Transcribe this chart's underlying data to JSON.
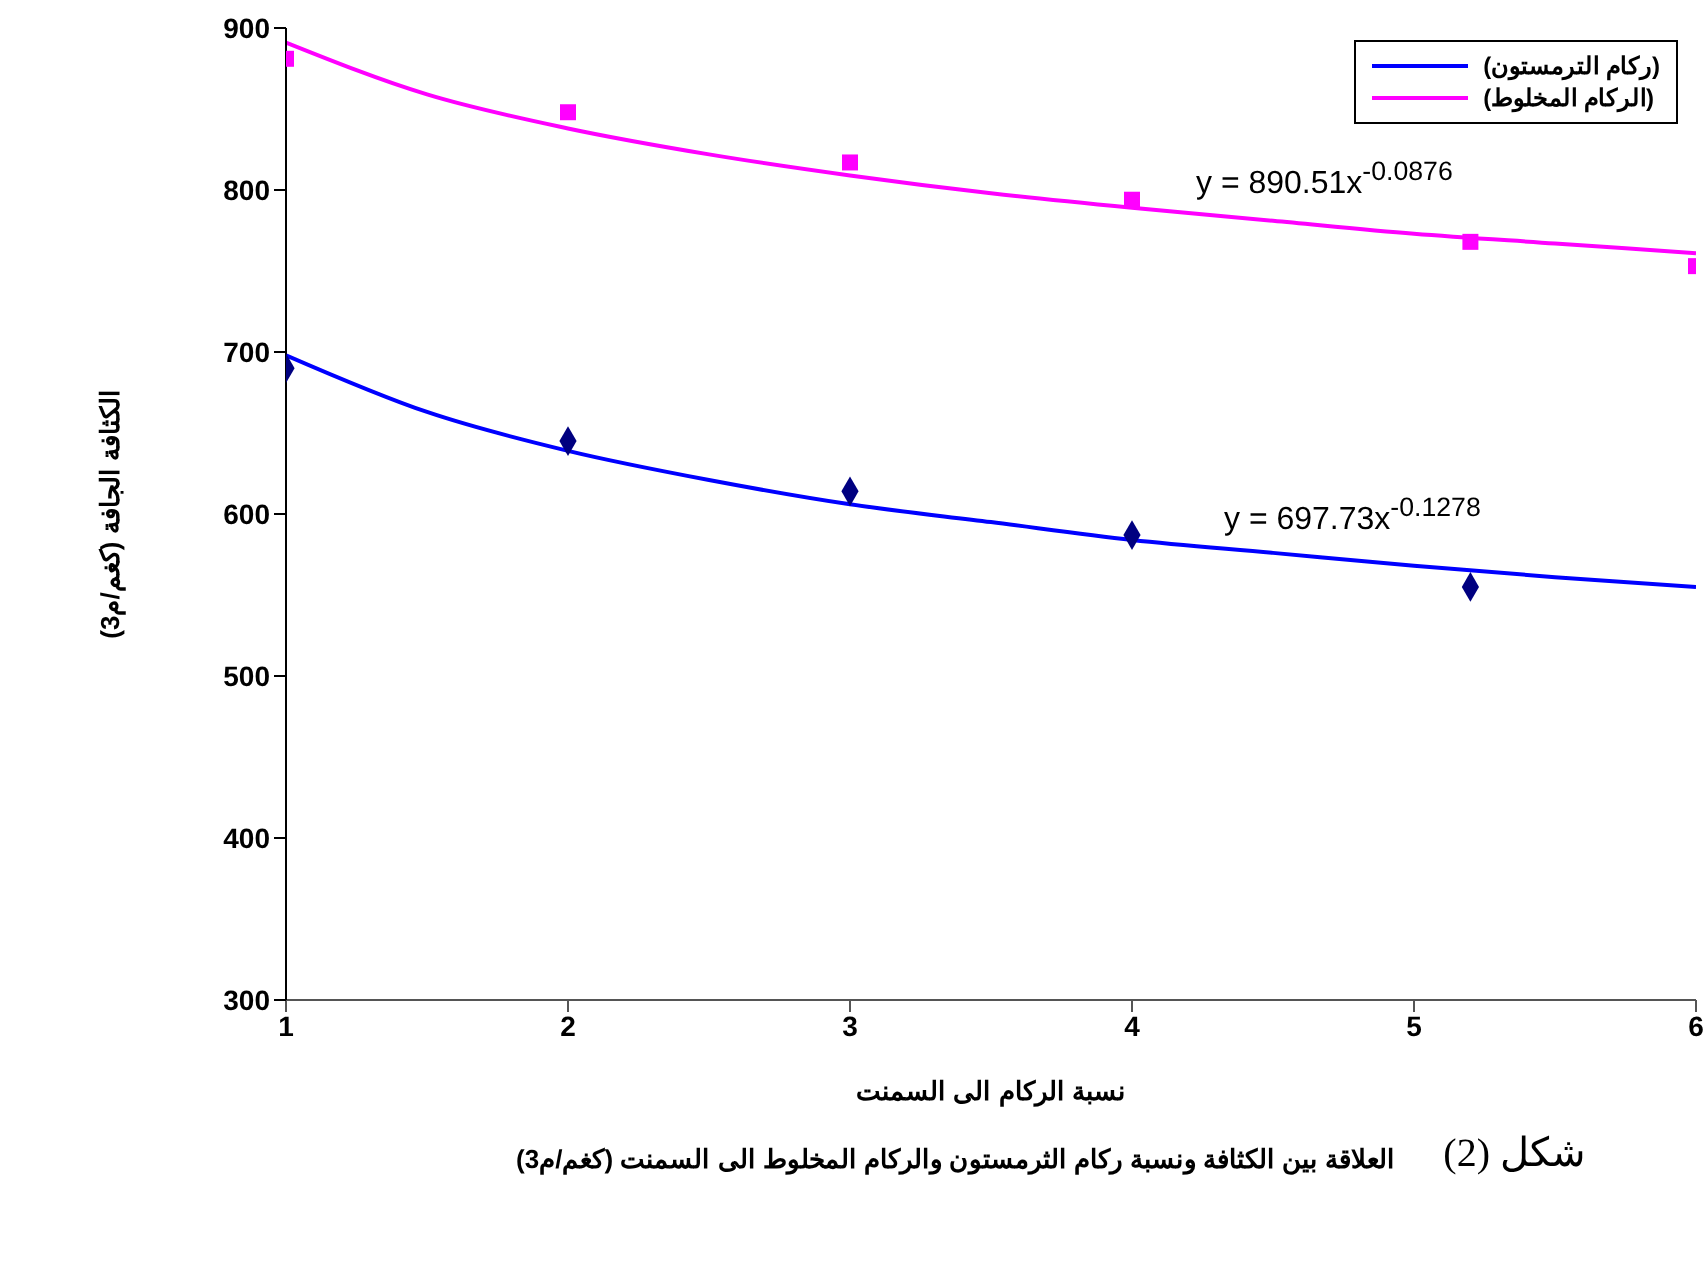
{
  "chart_data": {
    "type": "scatter",
    "xlabel": "نسبة الركام  الى السمنت",
    "ylabel": "الكثافة الجافة (كغم/م3)",
    "xlim": [
      1,
      6
    ],
    "xticks": [
      1,
      2,
      3,
      4,
      5,
      6
    ],
    "ylim": [
      300,
      900
    ],
    "yticks": [
      300,
      400,
      500,
      600,
      700,
      800,
      900
    ],
    "grid": false,
    "legend": "top right",
    "series": [
      {
        "color": "#ff00ff",
        "marker": "square",
        "x": [
          1,
          2,
          3,
          4,
          5.2,
          6
        ],
        "values": [
          881,
          848,
          817,
          794,
          768,
          753
        ]
      },
      {
        "color": "#000080",
        "marker": "diamond",
        "x": [
          1,
          2,
          3,
          4,
          5.2
        ],
        "values": [
          690,
          645,
          614,
          587,
          555
        ]
      },
      {
        "type": "line",
        "name": "(ركام الترمستون)",
        "color": "#0000ff",
        "marker": "none",
        "line_style": "solid",
        "x": [
          1,
          1.5,
          2,
          2.5,
          3,
          3.5,
          4,
          4.5,
          5,
          5.5,
          6
        ],
        "values": [
          698,
          663,
          639,
          621,
          606,
          595,
          584,
          576,
          568,
          561,
          555
        ]
      },
      {
        "type": "line",
        "name": "(الركام المخلوط)",
        "color": "#ff00ff",
        "marker": "none",
        "line_style": "solid",
        "x": [
          1,
          1.5,
          2,
          2.5,
          3,
          3.5,
          4,
          4.5,
          5,
          5.5,
          6
        ],
        "values": [
          891,
          859,
          838,
          822,
          809,
          798,
          789,
          781,
          773,
          767,
          761
        ]
      }
    ],
    "annotations": [
      "y = 890.51x$^{-0.0876}$",
      "y = 697.73x$^{-0.1278}$",
      "شكل (2)",
      "العلاقة بين الكثافة ونسبة ركام الثرمستون والركام المخلوط الى السمنت (كغم/م3)"
    ]
  }
}
